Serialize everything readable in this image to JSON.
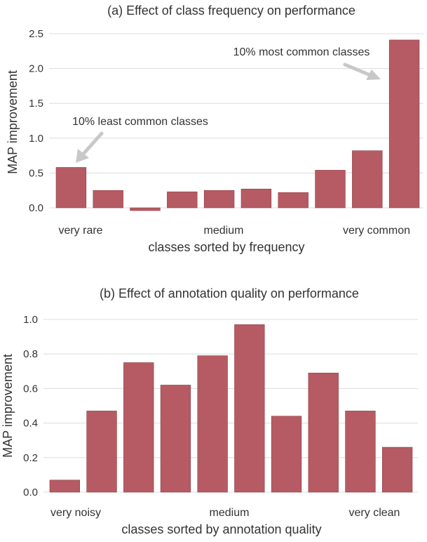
{
  "colors": {
    "bar": "#b65b63",
    "arrow": "#c8c8c8"
  },
  "chart_data": [
    {
      "type": "bar",
      "title": "(a) Effect of class frequency on performance",
      "xlabel": "classes sorted by frequency",
      "ylabel": "MAP improvement",
      "ylim": [
        0,
        2.5
      ],
      "yticks": [
        "0.0",
        "0.5",
        "1.0",
        "1.5",
        "2.0",
        "2.5"
      ],
      "grid": true,
      "category_labels": [
        "very rare",
        "medium",
        "very common"
      ],
      "values": [
        0.58,
        0.25,
        -0.04,
        0.23,
        0.25,
        0.27,
        0.22,
        0.54,
        0.82,
        2.41
      ],
      "annotations": [
        {
          "text": "10% least common classes",
          "target_bar": 0
        },
        {
          "text": "10% most common classes",
          "target_bar": 9
        }
      ]
    },
    {
      "type": "bar",
      "title": "(b) Effect of annotation quality on performance",
      "xlabel": "classes sorted by annotation quality",
      "ylabel": "MAP improvement",
      "ylim": [
        0,
        1.0
      ],
      "yticks": [
        "0.0",
        "0.2",
        "0.4",
        "0.6",
        "0.8",
        "1.0"
      ],
      "grid": true,
      "category_labels": [
        "very noisy",
        "medium",
        "very clean"
      ],
      "values": [
        0.07,
        0.47,
        0.75,
        0.62,
        0.79,
        0.97,
        0.44,
        0.69,
        0.47,
        0.26
      ]
    }
  ]
}
